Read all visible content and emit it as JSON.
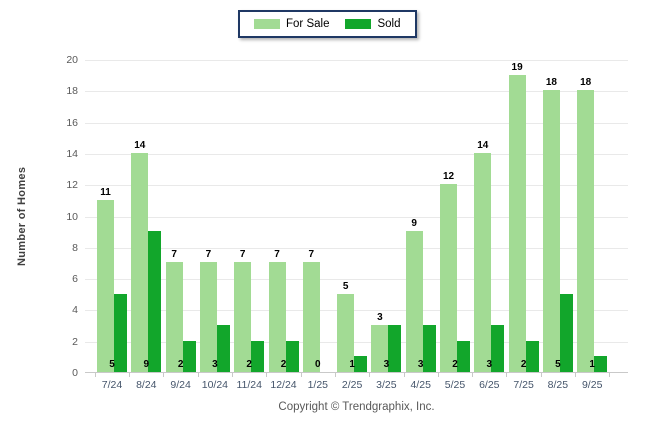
{
  "chart_data": {
    "type": "bar",
    "title": "",
    "categories": [
      "7/24",
      "8/24",
      "9/24",
      "10/24",
      "11/24",
      "12/24",
      "1/25",
      "2/25",
      "3/25",
      "4/25",
      "5/25",
      "6/25",
      "7/25",
      "8/25",
      "9/25"
    ],
    "series": [
      {
        "name": "For Sale",
        "color": "#A2DB94",
        "values": [
          11,
          14,
          7,
          7,
          7,
          7,
          7,
          5,
          3,
          9,
          12,
          14,
          19,
          18,
          18
        ]
      },
      {
        "name": "Sold",
        "color": "#12A62B",
        "values": [
          5,
          9,
          2,
          3,
          2,
          2,
          0,
          1,
          3,
          3,
          2,
          3,
          2,
          5,
          1
        ]
      }
    ],
    "xlabel": "",
    "ylabel": "Number of Homes",
    "ylim": [
      0,
      20
    ],
    "ytick_step": 2,
    "grid": true,
    "legend_position": "top-center",
    "colors": {
      "grid": "#E9E9E9",
      "axis": "#C9C9C9",
      "legend_border": "#1F3864",
      "y_tick_text": "#595959",
      "x_tick_text": "#44546A",
      "value_label_text": "#000000"
    }
  },
  "footer": {
    "copyright": "Copyright © Trendgraphix, Inc."
  }
}
